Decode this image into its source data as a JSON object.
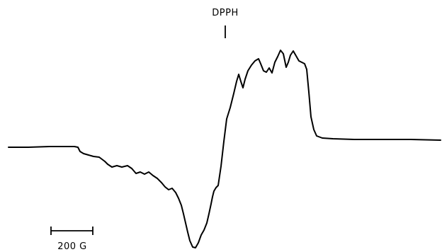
{
  "chart_data": {
    "type": "line",
    "title": "",
    "xlabel": "",
    "ylabel": "",
    "marker": {
      "label": "DPPH"
    },
    "scale_bar": {
      "label": "200 G"
    },
    "colors": {
      "line": "#000000",
      "background": "#ffffff"
    },
    "series": [
      {
        "points": [
          [
            12,
            208
          ],
          [
            40,
            208
          ],
          [
            70,
            207
          ],
          [
            90,
            207
          ],
          [
            105,
            207
          ],
          [
            110,
            208
          ],
          [
            113,
            214
          ],
          [
            118,
            217
          ],
          [
            125,
            219
          ],
          [
            132,
            221
          ],
          [
            140,
            222
          ],
          [
            148,
            228
          ],
          [
            152,
            232
          ],
          [
            158,
            236
          ],
          [
            165,
            234
          ],
          [
            172,
            236
          ],
          [
            180,
            234
          ],
          [
            186,
            238
          ],
          [
            192,
            245
          ],
          [
            198,
            243
          ],
          [
            204,
            246
          ],
          [
            210,
            243
          ],
          [
            216,
            248
          ],
          [
            222,
            252
          ],
          [
            228,
            258
          ],
          [
            233,
            264
          ],
          [
            238,
            268
          ],
          [
            243,
            266
          ],
          [
            248,
            272
          ],
          [
            252,
            280
          ],
          [
            256,
            290
          ],
          [
            259,
            302
          ],
          [
            262,
            315
          ],
          [
            265,
            328
          ],
          [
            268,
            340
          ],
          [
            272,
            349
          ],
          [
            276,
            350
          ],
          [
            280,
            343
          ],
          [
            284,
            332
          ],
          [
            288,
            325
          ],
          [
            292,
            315
          ],
          [
            295,
            302
          ],
          [
            298,
            288
          ],
          [
            300,
            278
          ],
          [
            302,
            270
          ],
          [
            305,
            265
          ],
          [
            308,
            262
          ],
          [
            312,
            235
          ],
          [
            316,
            200
          ],
          [
            320,
            168
          ],
          [
            325,
            152
          ],
          [
            330,
            132
          ],
          [
            334,
            115
          ],
          [
            337,
            105
          ],
          [
            340,
            115
          ],
          [
            343,
            124
          ],
          [
            346,
            112
          ],
          [
            350,
            100
          ],
          [
            355,
            92
          ],
          [
            360,
            86
          ],
          [
            365,
            83
          ],
          [
            368,
            90
          ],
          [
            372,
            100
          ],
          [
            376,
            102
          ],
          [
            380,
            96
          ],
          [
            384,
            103
          ],
          [
            388,
            88
          ],
          [
            392,
            80
          ],
          [
            396,
            71
          ],
          [
            400,
            76
          ],
          [
            404,
            95
          ],
          [
            407,
            88
          ],
          [
            410,
            78
          ],
          [
            414,
            72
          ],
          [
            418,
            79
          ],
          [
            422,
            86
          ],
          [
            426,
            88
          ],
          [
            430,
            90
          ],
          [
            433,
            98
          ],
          [
            436,
            130
          ],
          [
            439,
            165
          ],
          [
            443,
            183
          ],
          [
            447,
            192
          ],
          [
            455,
            195
          ],
          [
            470,
            196
          ],
          [
            500,
            197
          ],
          [
            540,
            197
          ],
          [
            580,
            197
          ],
          [
            622,
            198
          ]
        ]
      }
    ]
  }
}
